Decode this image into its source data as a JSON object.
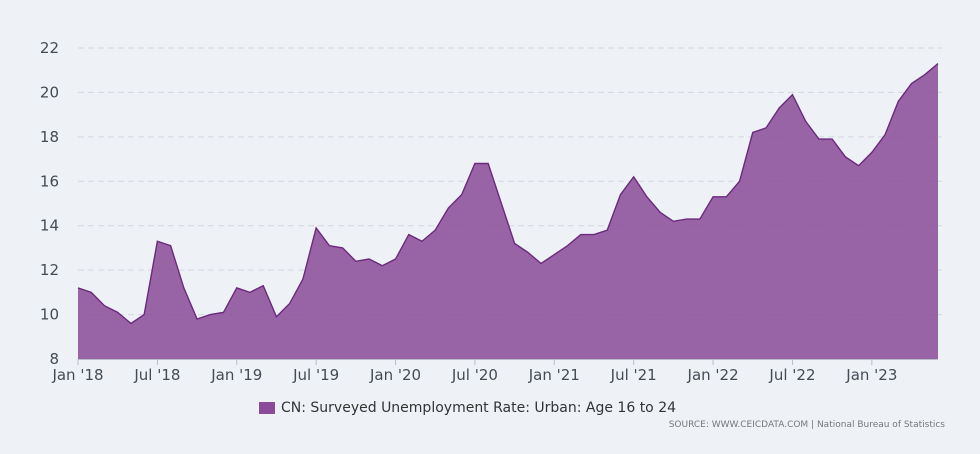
{
  "chart_data": {
    "type": "area",
    "series": [
      {
        "name": "CN: Surveyed Unemployment Rate: Urban: Age 16 to 24",
        "x": [
          "2018-01",
          "2018-02",
          "2018-03",
          "2018-04",
          "2018-05",
          "2018-06",
          "2018-07",
          "2018-08",
          "2018-09",
          "2018-10",
          "2018-11",
          "2018-12",
          "2019-01",
          "2019-02",
          "2019-03",
          "2019-04",
          "2019-05",
          "2019-06",
          "2019-07",
          "2019-08",
          "2019-09",
          "2019-10",
          "2019-11",
          "2019-12",
          "2020-01",
          "2020-02",
          "2020-03",
          "2020-04",
          "2020-05",
          "2020-06",
          "2020-07",
          "2020-08",
          "2020-09",
          "2020-10",
          "2020-11",
          "2020-12",
          "2021-01",
          "2021-02",
          "2021-03",
          "2021-04",
          "2021-05",
          "2021-06",
          "2021-07",
          "2021-08",
          "2021-09",
          "2021-10",
          "2021-11",
          "2021-12",
          "2022-01",
          "2022-02",
          "2022-03",
          "2022-04",
          "2022-05",
          "2022-06",
          "2022-07",
          "2022-08",
          "2022-09",
          "2022-10",
          "2022-11",
          "2022-12",
          "2023-01",
          "2023-02",
          "2023-03",
          "2023-04",
          "2023-05",
          "2023-06"
        ],
        "values": [
          11.2,
          11.0,
          10.4,
          10.1,
          9.6,
          10.0,
          13.3,
          13.1,
          11.2,
          9.8,
          10.0,
          10.1,
          11.2,
          11.0,
          11.3,
          9.9,
          10.5,
          11.6,
          13.9,
          13.1,
          13.0,
          12.4,
          12.5,
          12.2,
          12.5,
          13.6,
          13.3,
          13.8,
          14.8,
          15.4,
          16.8,
          16.8,
          15.0,
          13.2,
          12.8,
          12.3,
          12.7,
          13.1,
          13.6,
          13.6,
          13.8,
          15.4,
          16.2,
          15.3,
          14.6,
          14.2,
          14.3,
          14.3,
          15.3,
          15.3,
          16.0,
          18.2,
          18.4,
          19.3,
          19.9,
          18.7,
          17.9,
          17.9,
          17.1,
          16.7,
          17.3,
          18.1,
          19.6,
          20.4,
          20.8,
          21.3
        ],
        "color": "#8a4b98"
      }
    ],
    "x_tick_labels": [
      "Jan '18",
      "Jul '18",
      "Jan '19",
      "Jul '19",
      "Jan '20",
      "Jul '20",
      "Jan '21",
      "Jul '21",
      "Jan '22",
      "Jul '22",
      "Jan '23"
    ],
    "y_ticks": [
      8,
      10,
      12,
      14,
      16,
      18,
      20,
      22
    ],
    "ylim": [
      8,
      22
    ],
    "grid": true,
    "legend_position": "bottom-center",
    "source": "SOURCE: WWW.CEICDATA.COM | National Bureau of Statistics"
  }
}
